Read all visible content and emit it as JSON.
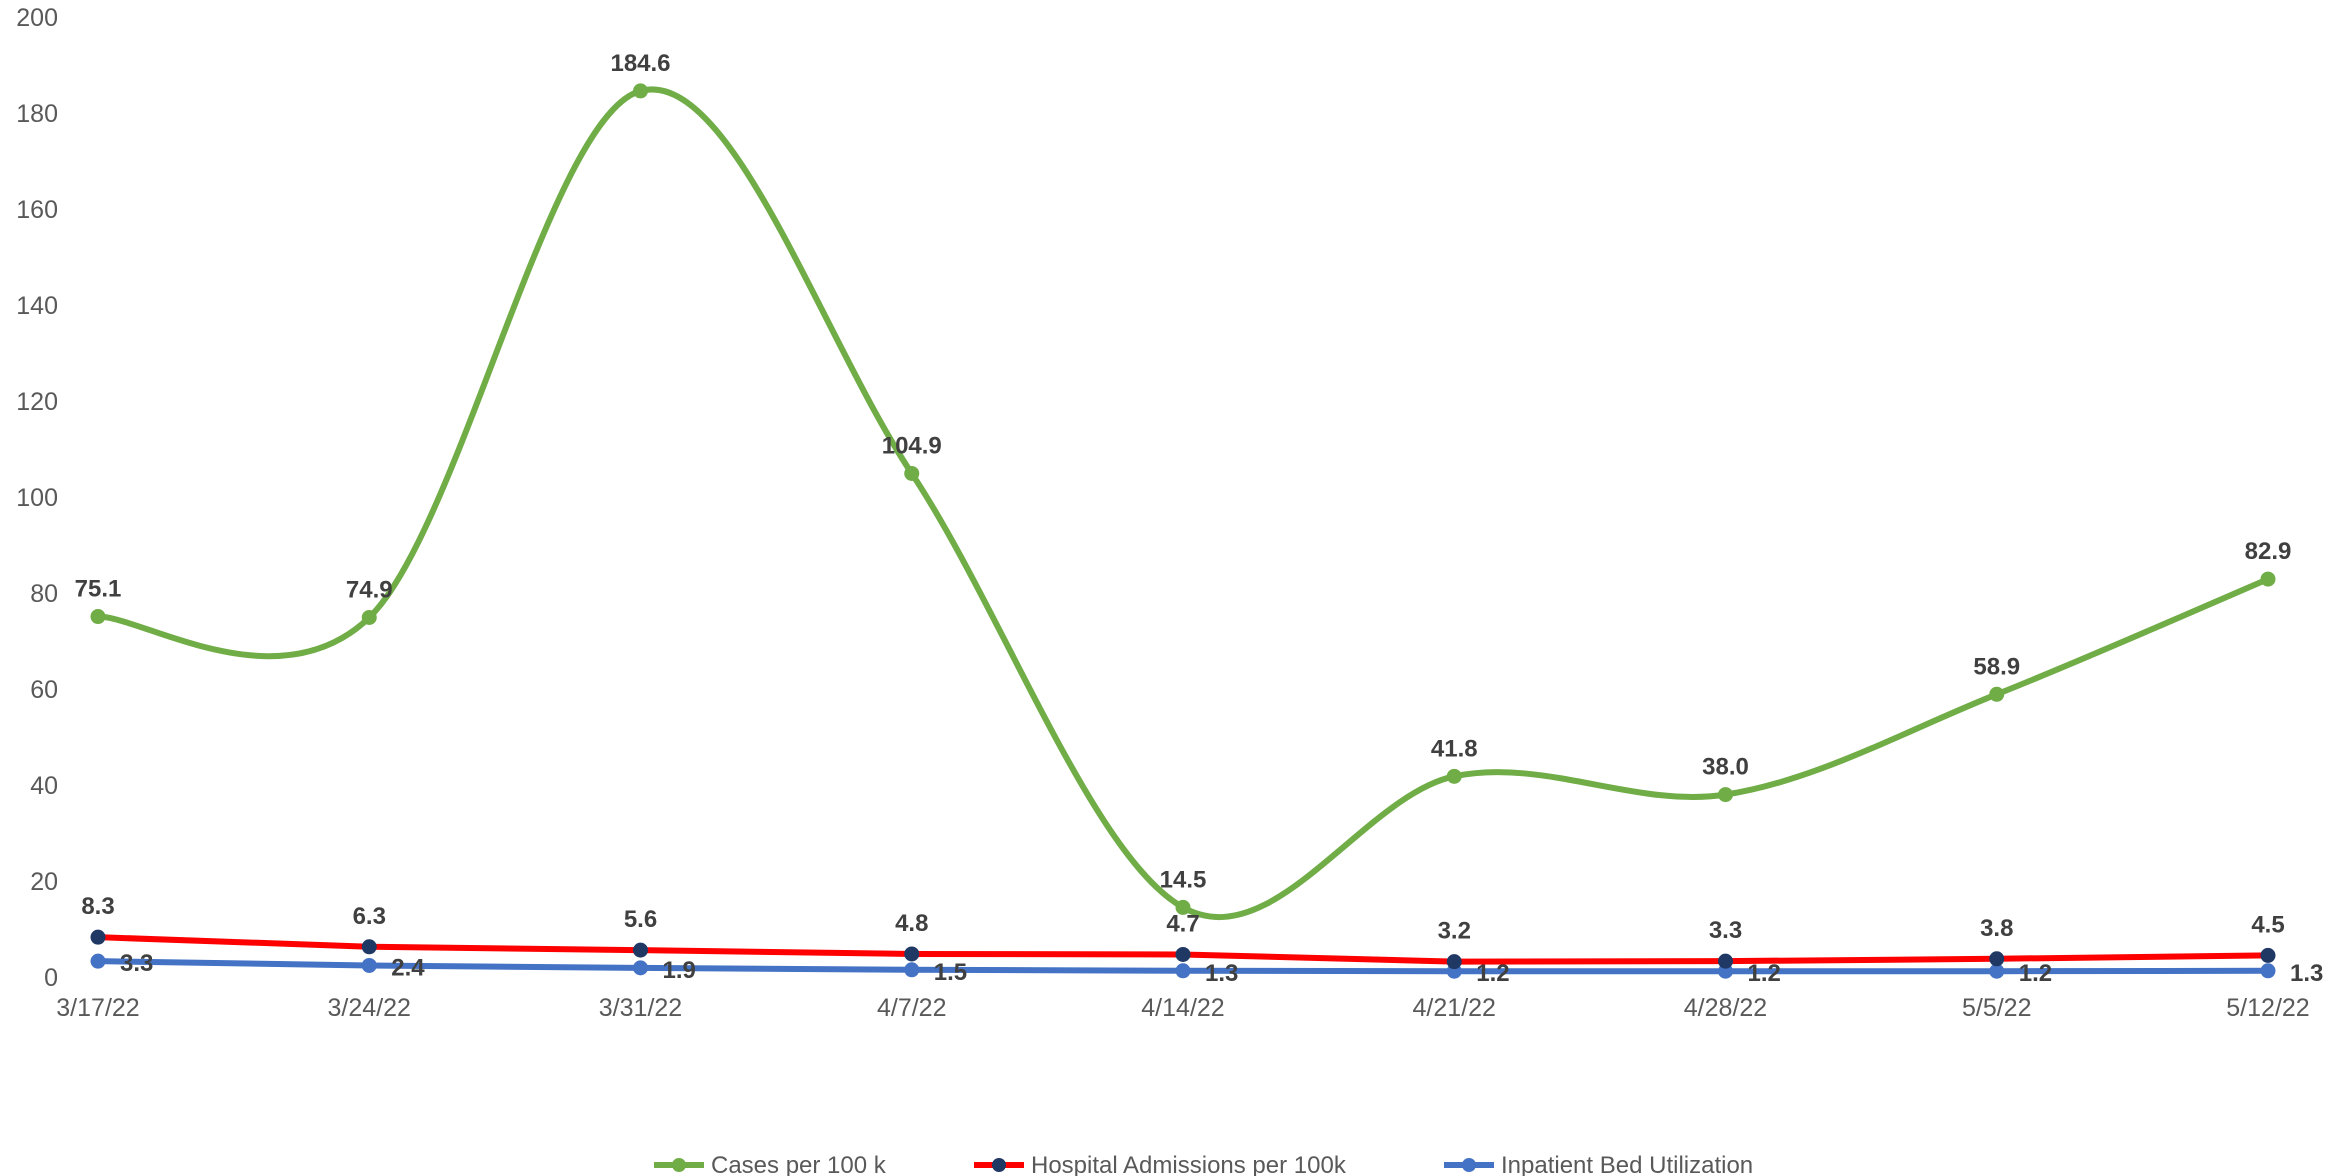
{
  "chart_data": {
    "type": "line",
    "categories": [
      "3/17/22",
      "3/24/22",
      "3/31/22",
      "4/7/22",
      "4/14/22",
      "4/21/22",
      "4/28/22",
      "5/5/22",
      "5/12/22"
    ],
    "ylim": [
      0,
      200
    ],
    "yticks": [
      0,
      20,
      40,
      60,
      80,
      100,
      120,
      140,
      160,
      180,
      200
    ],
    "grid": false,
    "legend_position": "bottom",
    "series": [
      {
        "name": "Cases per 100 k",
        "values": [
          75.1,
          74.9,
          184.6,
          104.9,
          14.5,
          41.8,
          38.0,
          58.9,
          82.9
        ],
        "labels": [
          "75.1",
          "74.9",
          "184.6",
          "104.9",
          "14.5",
          "41.8",
          "38.0",
          "58.9",
          "82.9"
        ],
        "line_color": "#70AD47",
        "marker_color": "#70AD47",
        "smooth": true
      },
      {
        "name": "Hospital Admissions per 100k",
        "values": [
          8.3,
          6.3,
          5.6,
          4.8,
          4.7,
          3.2,
          3.3,
          3.8,
          4.5
        ],
        "labels": [
          "8.3",
          "6.3",
          "5.6",
          "4.8",
          "4.7",
          "3.2",
          "3.3",
          "3.8",
          "4.5"
        ],
        "line_color": "#FF0000",
        "marker_color": "#203864",
        "smooth": false
      },
      {
        "name": "Inpatient Bed Utilization",
        "values": [
          3.3,
          2.4,
          1.9,
          1.5,
          1.3,
          1.2,
          1.2,
          1.2,
          1.3
        ],
        "labels": [
          "3.3",
          "2.4",
          "1.9",
          "1.5",
          "1.3",
          "1.2",
          "1.2",
          "1.2",
          "1.3"
        ],
        "line_color": "#4472C4",
        "marker_color": "#4472C4",
        "smooth": false
      }
    ]
  }
}
